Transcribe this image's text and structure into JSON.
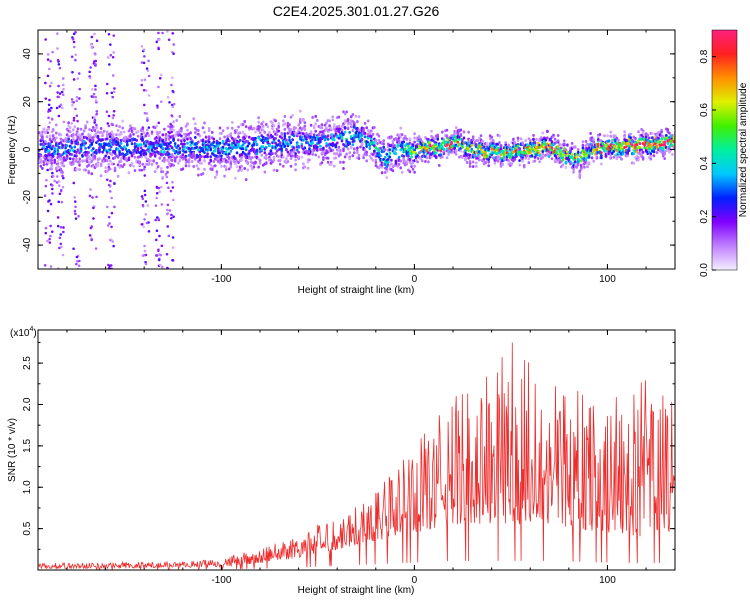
{
  "title": "C2E4.2025.301.01.27.G26",
  "chart_data": [
    {
      "type": "heatmap",
      "xlabel": "Height of straight line (km)",
      "ylabel": "Frequency (Hz)",
      "xlim": [
        -195,
        135
      ],
      "ylim": [
        -50,
        50
      ],
      "xticks": [
        -100,
        0,
        100
      ],
      "yticks": [
        -40,
        -20,
        0,
        20,
        40
      ],
      "colorbar": {
        "label": "Normalized spectral amplitude",
        "range": [
          0,
          0.9
        ],
        "ticks": [
          "0.0",
          "0.2",
          "0.4",
          "0.6",
          "0.8"
        ],
        "colors": [
          "#f4f0ff",
          "#c080ff",
          "#8000ff",
          "#0020ff",
          "#00c8ff",
          "#00f0a0",
          "#40f000",
          "#e0f000",
          "#ff9000",
          "#ff2020",
          "#ff2080"
        ]
      },
      "ridge_center_hz": [
        [
          -195,
          0
        ],
        [
          -150,
          1
        ],
        [
          -120,
          1
        ],
        [
          -100,
          0
        ],
        [
          -80,
          2
        ],
        [
          -60,
          3
        ],
        [
          -40,
          4
        ],
        [
          -30,
          6
        ],
        [
          -20,
          0
        ],
        [
          -15,
          -4
        ],
        [
          -10,
          -1
        ],
        [
          0,
          0
        ],
        [
          10,
          1
        ],
        [
          20,
          3
        ],
        [
          30,
          0
        ],
        [
          40,
          -1
        ],
        [
          50,
          -2
        ],
        [
          60,
          0
        ],
        [
          70,
          1
        ],
        [
          80,
          -3
        ],
        [
          85,
          -5
        ],
        [
          90,
          0
        ],
        [
          100,
          1
        ],
        [
          115,
          2
        ],
        [
          135,
          3
        ]
      ],
      "ridge_peak_amplitude": [
        [
          -195,
          0.3
        ],
        [
          -100,
          0.35
        ],
        [
          -50,
          0.35
        ],
        [
          -20,
          0.4
        ],
        [
          0,
          0.55
        ],
        [
          10,
          0.85
        ],
        [
          40,
          0.6
        ],
        [
          60,
          0.75
        ],
        [
          70,
          0.8
        ],
        [
          90,
          0.6
        ],
        [
          100,
          0.85
        ],
        [
          120,
          0.9
        ],
        [
          135,
          0.8
        ]
      ]
    },
    {
      "type": "line",
      "xlabel": "Height of straight line (km)",
      "ylabel": "SNR (10 * v/v)",
      "y_scale_label": "(x10",
      "y_scale_exp": "4",
      "y_scale_close": ")",
      "xlim": [
        -195,
        135
      ],
      "ylim": [
        0,
        2.9
      ],
      "xticks": [
        -100,
        0,
        100
      ],
      "yticks": [
        "0.5",
        "1.0",
        "1.5",
        "2.0",
        "2.5"
      ],
      "ytick_values": [
        0.5,
        1.0,
        1.5,
        2.0,
        2.5
      ],
      "series": [
        {
          "name": "SNR",
          "color": "#ee2c2c",
          "envelope": [
            [
              -195,
              0.02,
              0.08
            ],
            [
              -150,
              0.02,
              0.1
            ],
            [
              -120,
              0.03,
              0.1
            ],
            [
              -100,
              0.04,
              0.15
            ],
            [
              -80,
              0.08,
              0.25
            ],
            [
              -60,
              0.15,
              0.45
            ],
            [
              -40,
              0.25,
              0.65
            ],
            [
              -20,
              0.35,
              1.0
            ],
            [
              0,
              0.45,
              1.5
            ],
            [
              10,
              0.5,
              1.8
            ],
            [
              20,
              0.55,
              2.1
            ],
            [
              40,
              0.55,
              2.5
            ],
            [
              55,
              0.55,
              2.85
            ],
            [
              70,
              0.55,
              2.4
            ],
            [
              85,
              0.5,
              2.2
            ],
            [
              100,
              0.45,
              2.1
            ],
            [
              120,
              0.4,
              2.3
            ],
            [
              135,
              0.45,
              2.2
            ]
          ]
        }
      ]
    }
  ]
}
